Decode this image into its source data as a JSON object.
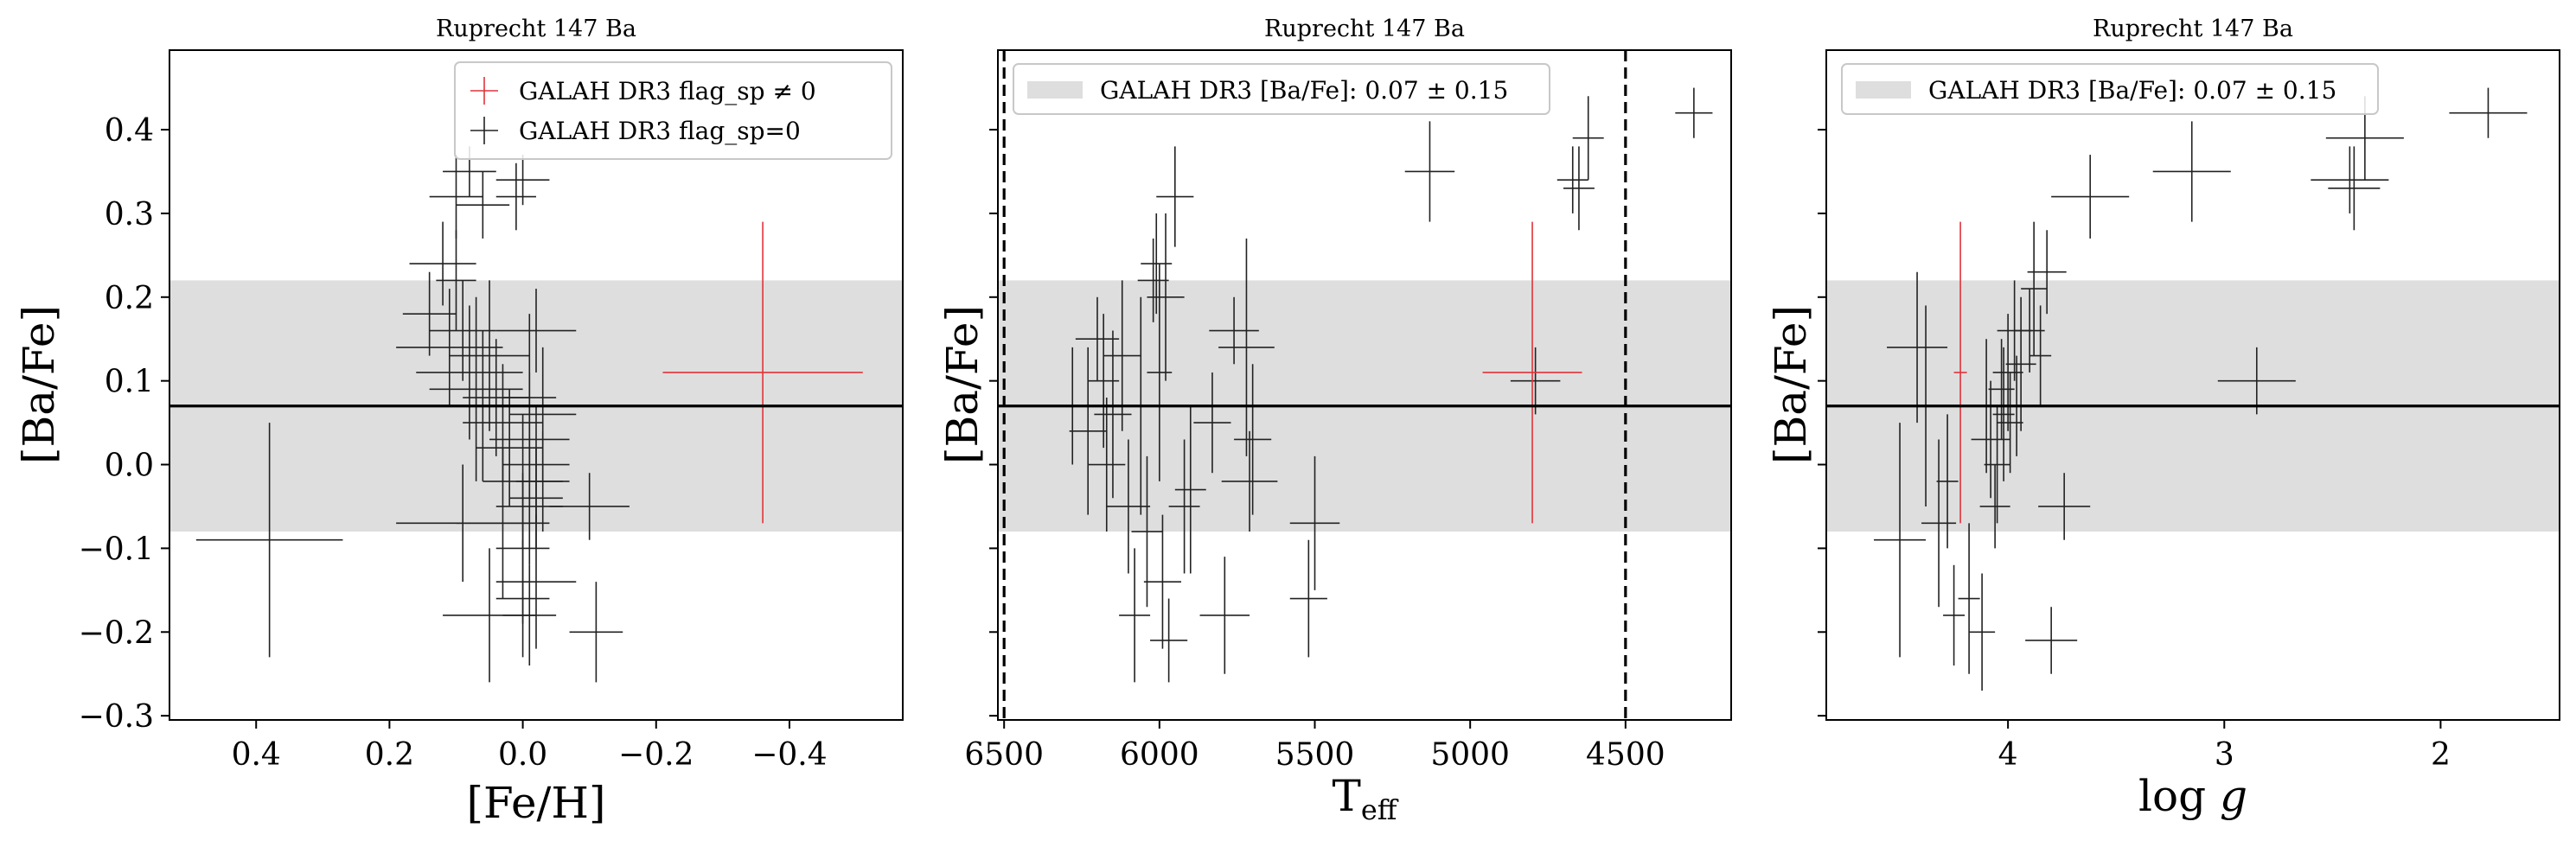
{
  "colors": {
    "band": "#dedede",
    "flagged": "#e0333a",
    "unflagged": "#222222",
    "frame": "#000000"
  },
  "legend": {
    "flag_nonzero": "GALAH DR3 flag_sp ≠ 0",
    "flag_zero": "GALAH DR3 flag_sp=0",
    "band": "GALAH DR3 [Ba/Fe]: 0.07 ± 0.15"
  },
  "chart_data": [
    {
      "type": "scatter",
      "title": "Ruprecht 147 Ba",
      "xlabel": "[Fe/H]",
      "ylabel": "[Ba/Fe]",
      "xlim": [
        0.53,
        -0.57
      ],
      "ylim": [
        -0.305,
        0.495
      ],
      "xticks": [
        0.4,
        0.2,
        0.0,
        -0.2,
        -0.4
      ],
      "xtick_labels": [
        "0.4",
        "0.2",
        "0.0",
        "−0.2",
        "−0.4"
      ],
      "yticks": [
        -0.3,
        -0.2,
        -0.1,
        0.0,
        0.1,
        0.2,
        0.3,
        0.4
      ],
      "ytick_labels": [
        "−0.3",
        "−0.2",
        "−0.1",
        "0.0",
        "0.1",
        "0.2",
        "0.3",
        "0.4"
      ],
      "show_ytick_labels": true,
      "legend_loc": "upper right",
      "band": {
        "center": 0.07,
        "halfwidth": 0.15
      },
      "hline": 0.07,
      "vlines": [],
      "flagged": [
        [
          -0.36,
          0.11,
          0.15,
          0.18
        ]
      ],
      "unflagged": [
        [
          0.38,
          -0.09,
          0.11,
          0.14
        ],
        [
          0.08,
          0.35,
          0.04,
          0.03
        ],
        [
          0.1,
          0.32,
          0.04,
          0.05
        ],
        [
          0.06,
          0.31,
          0.04,
          0.04
        ],
        [
          0.0,
          0.34,
          0.04,
          0.03
        ],
        [
          0.01,
          0.32,
          0.03,
          0.04
        ],
        [
          0.12,
          0.24,
          0.05,
          0.05
        ],
        [
          0.1,
          0.22,
          0.03,
          0.06
        ],
        [
          0.14,
          0.18,
          0.04,
          0.05
        ],
        [
          0.11,
          0.14,
          0.08,
          0.07
        ],
        [
          0.09,
          0.16,
          0.05,
          0.06
        ],
        [
          0.05,
          0.13,
          0.06,
          0.09
        ],
        [
          0.08,
          0.11,
          0.08,
          0.08
        ],
        [
          0.07,
          0.09,
          0.07,
          0.11
        ],
        [
          0.04,
          0.08,
          0.05,
          0.07
        ],
        [
          0.06,
          0.07,
          0.05,
          0.09
        ],
        [
          0.03,
          0.05,
          0.06,
          0.07
        ],
        [
          -0.01,
          0.08,
          0.04,
          0.1
        ],
        [
          -0.03,
          0.06,
          0.05,
          0.08
        ],
        [
          -0.02,
          0.16,
          0.06,
          0.05
        ],
        [
          -0.01,
          0.03,
          0.06,
          0.08
        ],
        [
          -0.02,
          0.0,
          0.05,
          0.07
        ],
        [
          0.0,
          -0.02,
          0.06,
          0.08
        ],
        [
          -0.02,
          -0.04,
          0.04,
          0.06
        ],
        [
          0.03,
          -0.07,
          0.07,
          0.09
        ],
        [
          -0.01,
          -0.05,
          0.05,
          0.07
        ],
        [
          -0.03,
          -0.02,
          0.04,
          0.06
        ],
        [
          0.0,
          -0.1,
          0.04,
          0.09
        ],
        [
          -0.02,
          -0.14,
          0.06,
          0.08
        ],
        [
          0.0,
          -0.16,
          0.04,
          0.07
        ],
        [
          -0.01,
          -0.18,
          0.04,
          0.06
        ],
        [
          0.05,
          -0.18,
          0.07,
          0.08
        ],
        [
          0.09,
          -0.07,
          0.1,
          0.07
        ],
        [
          -0.1,
          -0.05,
          0.06,
          0.04
        ],
        [
          -0.11,
          -0.2,
          0.04,
          0.06
        ],
        [
          0.02,
          0.02,
          0.05,
          0.07
        ]
      ]
    },
    {
      "type": "scatter",
      "title": "Ruprecht 147 Ba",
      "xlabel": "T_eff",
      "ylabel": "[Ba/Fe]",
      "xlim": [
        6520,
        4160
      ],
      "ylim": [
        -0.305,
        0.495
      ],
      "xticks": [
        6500,
        6000,
        5500,
        5000,
        4500
      ],
      "xtick_labels": [
        "6500",
        "6000",
        "5500",
        "5000",
        "4500"
      ],
      "yticks": [
        -0.3,
        -0.2,
        -0.1,
        0.0,
        0.1,
        0.2,
        0.3,
        0.4
      ],
      "ytick_labels": [],
      "show_ytick_labels": false,
      "legend_loc": "upper left",
      "band": {
        "center": 0.07,
        "halfwidth": 0.15
      },
      "hline": 0.07,
      "vlines": [
        6500,
        4500
      ],
      "flagged": [
        [
          4800,
          0.11,
          160,
          0.18
        ]
      ],
      "unflagged": [
        [
          6280,
          0.07,
          80,
          0.07
        ],
        [
          6230,
          0.04,
          60,
          0.1
        ],
        [
          6200,
          0.15,
          70,
          0.05
        ],
        [
          6180,
          0.1,
          50,
          0.08
        ],
        [
          6170,
          0.0,
          60,
          0.08
        ],
        [
          6150,
          0.06,
          60,
          0.1
        ],
        [
          6120,
          0.13,
          60,
          0.09
        ],
        [
          6100,
          -0.05,
          70,
          0.08
        ],
        [
          6080,
          -0.18,
          50,
          0.08
        ],
        [
          6060,
          0.07,
          50,
          0.13
        ],
        [
          6040,
          -0.08,
          50,
          0.09
        ],
        [
          6020,
          0.22,
          50,
          0.05
        ],
        [
          6010,
          0.24,
          50,
          0.06
        ],
        [
          6000,
          0.11,
          40,
          0.13
        ],
        [
          5990,
          -0.14,
          60,
          0.08
        ],
        [
          5980,
          0.2,
          60,
          0.1
        ],
        [
          5970,
          -0.21,
          60,
          0.05
        ],
        [
          5950,
          0.32,
          60,
          0.06
        ],
        [
          5920,
          -0.05,
          50,
          0.08
        ],
        [
          5900,
          -0.03,
          50,
          0.1
        ],
        [
          5830,
          0.05,
          60,
          0.06
        ],
        [
          5790,
          -0.18,
          80,
          0.07
        ],
        [
          5760,
          0.16,
          80,
          0.04
        ],
        [
          5720,
          0.14,
          90,
          0.13
        ],
        [
          5710,
          -0.02,
          90,
          0.06
        ],
        [
          5700,
          0.03,
          60,
          0.09
        ],
        [
          5500,
          -0.07,
          80,
          0.08
        ],
        [
          5520,
          -0.16,
          60,
          0.07
        ],
        [
          5130,
          0.35,
          80,
          0.06
        ],
        [
          4790,
          0.1,
          80,
          0.04
        ],
        [
          4670,
          0.34,
          50,
          0.04
        ],
        [
          4650,
          0.33,
          50,
          0.05
        ],
        [
          4620,
          0.39,
          50,
          0.05
        ],
        [
          4280,
          0.42,
          60,
          0.03
        ]
      ]
    },
    {
      "type": "scatter",
      "title": "Ruprecht 147 Ba",
      "xlabel": "log g",
      "ylabel": "[Ba/Fe]",
      "xlim": [
        4.84,
        1.45
      ],
      "ylim": [
        -0.305,
        0.495
      ],
      "xticks": [
        4,
        3,
        2
      ],
      "xtick_labels": [
        "4",
        "3",
        "2"
      ],
      "yticks": [
        -0.3,
        -0.2,
        -0.1,
        0.0,
        0.1,
        0.2,
        0.3,
        0.4
      ],
      "ytick_labels": [],
      "show_ytick_labels": false,
      "legend_loc": "upper left",
      "band": {
        "center": 0.07,
        "halfwidth": 0.15
      },
      "hline": 0.07,
      "vlines": [],
      "flagged": [
        [
          4.22,
          0.11,
          0.03,
          0.18
        ]
      ],
      "unflagged": [
        [
          4.5,
          -0.09,
          0.12,
          0.14
        ],
        [
          4.42,
          0.14,
          0.14,
          0.09
        ],
        [
          4.38,
          0.07,
          0.06,
          0.12
        ],
        [
          4.32,
          -0.07,
          0.08,
          0.1
        ],
        [
          4.28,
          -0.02,
          0.05,
          0.08
        ],
        [
          4.25,
          -0.18,
          0.05,
          0.06
        ],
        [
          4.18,
          -0.16,
          0.05,
          0.09
        ],
        [
          4.12,
          -0.2,
          0.06,
          0.07
        ],
        [
          4.1,
          0.07,
          0.07,
          0.08
        ],
        [
          4.08,
          0.03,
          0.09,
          0.07
        ],
        [
          4.06,
          -0.05,
          0.07,
          0.05
        ],
        [
          4.05,
          0.0,
          0.06,
          0.07
        ],
        [
          4.03,
          0.09,
          0.06,
          0.06
        ],
        [
          4.02,
          0.06,
          0.05,
          0.08
        ],
        [
          4.0,
          0.11,
          0.07,
          0.07
        ],
        [
          3.99,
          0.05,
          0.06,
          0.06
        ],
        [
          3.97,
          0.16,
          0.08,
          0.06
        ],
        [
          3.96,
          0.07,
          0.06,
          0.06
        ],
        [
          3.94,
          0.12,
          0.07,
          0.08
        ],
        [
          3.9,
          0.16,
          0.07,
          0.05
        ],
        [
          3.88,
          0.21,
          0.06,
          0.08
        ],
        [
          3.85,
          0.13,
          0.05,
          0.06
        ],
        [
          3.82,
          0.23,
          0.09,
          0.05
        ],
        [
          3.8,
          -0.21,
          0.12,
          0.04
        ],
        [
          3.74,
          -0.05,
          0.12,
          0.04
        ],
        [
          3.62,
          0.32,
          0.18,
          0.05
        ],
        [
          3.15,
          0.35,
          0.18,
          0.06
        ],
        [
          2.85,
          0.1,
          0.18,
          0.04
        ],
        [
          2.42,
          0.34,
          0.18,
          0.04
        ],
        [
          2.4,
          0.33,
          0.12,
          0.05
        ],
        [
          2.35,
          0.39,
          0.18,
          0.05
        ],
        [
          1.78,
          0.42,
          0.18,
          0.03
        ]
      ]
    }
  ]
}
